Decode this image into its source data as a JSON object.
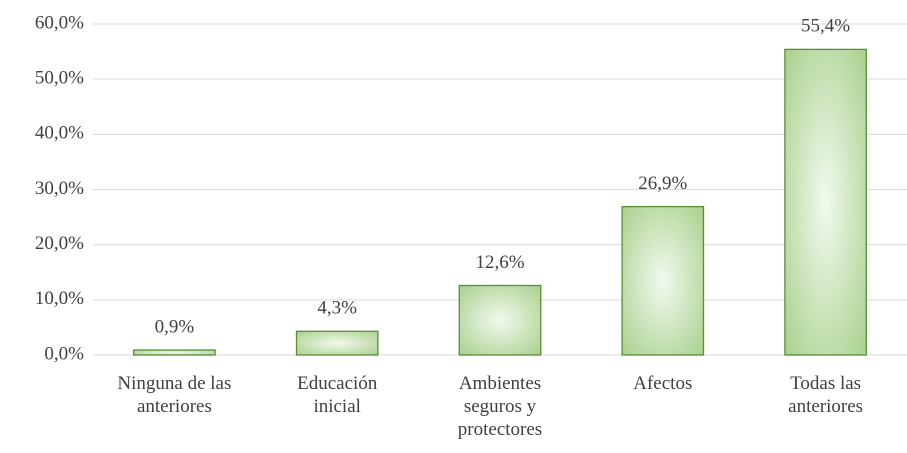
{
  "chart_data": {
    "type": "bar",
    "categories": [
      "Ninguna de las anteriores",
      "Educación inicial",
      "Ambientes seguros y protectores",
      "Afectos",
      "Todas las anteriores"
    ],
    "values": [
      0.9,
      4.3,
      12.6,
      26.9,
      55.4
    ],
    "value_labels": [
      "0,9%",
      "4,3%",
      "12,6%",
      "26,9%",
      "55,4%"
    ],
    "color": "#a9d18e",
    "ylim": [
      0,
      60
    ],
    "yticks": [
      {
        "value": 0,
        "label": "0,0%"
      },
      {
        "value": 10,
        "label": "10,0%"
      },
      {
        "value": 20,
        "label": "20,0%"
      },
      {
        "value": 30,
        "label": "30,0%"
      },
      {
        "value": 40,
        "label": "40,0%"
      },
      {
        "value": 50,
        "label": "50,0%"
      },
      {
        "value": 60,
        "label": "60,0%"
      }
    ],
    "grid": true
  }
}
